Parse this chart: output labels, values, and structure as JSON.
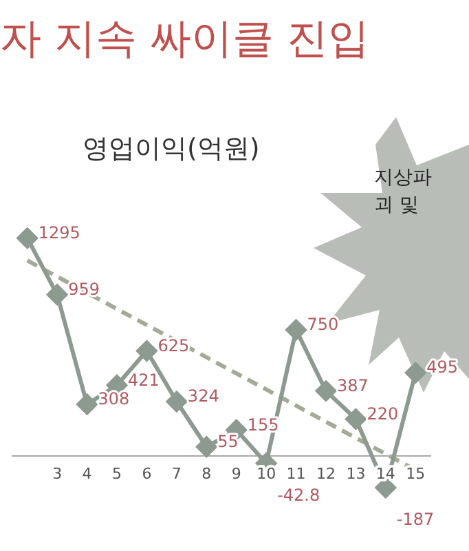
{
  "chart_data": {
    "type": "line",
    "title": "자 지속 싸이클 진입",
    "subtitle": "영업이익(억원)",
    "annotations": [
      "지상파",
      "괴 및"
    ],
    "categories": [
      null,
      "3",
      "4",
      "5",
      "6",
      "7",
      "8",
      "9",
      "10",
      "11",
      "12",
      "13",
      "14",
      "15"
    ],
    "series": [
      {
        "color": "#8c9a90",
        "values": [
          1295,
          959,
          308,
          421,
          625,
          324,
          55,
          155,
          -42.8,
          750,
          387,
          220,
          -187,
          495
        ],
        "value_labels": [
          "1295",
          "959",
          "308",
          "421",
          "625",
          "324",
          "55",
          "155",
          "-42.8",
          "750",
          "387",
          "220",
          "-187",
          "495"
        ],
        "marker": "diamond",
        "line_style": "solid"
      },
      {
        "color": "#a3ab94",
        "values": [
          1162,
          1066,
          970,
          874,
          779,
          683,
          587,
          491,
          396,
          300,
          204,
          108,
          13,
          -83
        ],
        "marker": "none",
        "line_style": "dashed"
      }
    ],
    "grid": false,
    "legend": false,
    "tick_labels": "x"
  }
}
